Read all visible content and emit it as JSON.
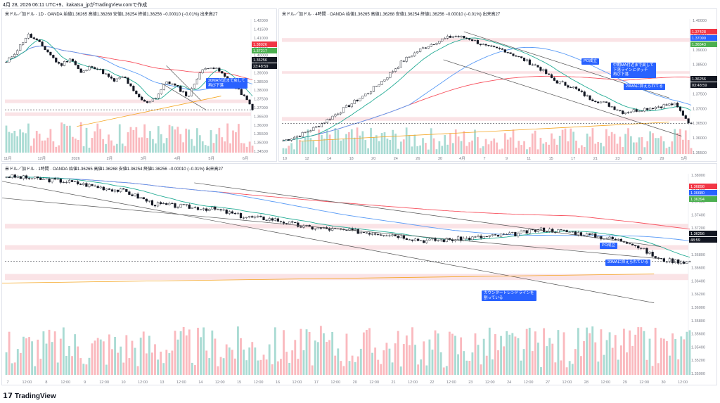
{
  "header": {
    "text": "4月 28, 2026 06:11 UTC+9、itakatsu_jpがTradingView.comで作成"
  },
  "footer": {
    "brand": "TradingView"
  },
  "colors": {
    "up": "#089981",
    "down": "#f23645",
    "accent": "#2962ff",
    "ma20": "#22ab94",
    "ma75": "#5b9cf6",
    "ma200": "#f7525f",
    "trend": "#131722",
    "zone": "#f8d7dc",
    "cyan": "#3cc8e0",
    "orange": "#f5a623"
  },
  "panes": [
    {
      "title": "米ドル／加ドル · 1D · OANDA",
      "ohlc": "始値1.36265 高値1.36268 安値1.36254 終値1.36256 −0.00010 (−0.01%) 出来高27",
      "price_labels": [
        {
          "text": "1.36256",
          "color": "#131722"
        },
        {
          "text": "23:48:59",
          "color": "#131722"
        },
        {
          "text": "1.38026",
          "color": "#f23645"
        },
        {
          "text": "1.37217",
          "color": "#4caf50"
        }
      ],
      "y_ticks": [
        "1.42000",
        "1.41500",
        "1.41000",
        "1.40500",
        "1.40000",
        "1.39500",
        "1.39000",
        "1.38500",
        "1.38000",
        "1.37500",
        "1.37000",
        "1.36500",
        "1.36000",
        "1.35500",
        "1.35000",
        "1.34500"
      ],
      "x_ticks": [
        "11月",
        "12月",
        "2026",
        "2月",
        "3月",
        "4月",
        "5月",
        "6月"
      ],
      "callouts": [
        {
          "text": "20MA付近まで戻して\n再び下落"
        }
      ]
    },
    {
      "title": "米ドル／加ドル · 4時間 · OANDA",
      "ohlc": "始値1.36265 高値1.36268 安値1.36254 終値1.36256 −0.00010 (−0.01%) 出来高27",
      "price_labels": [
        {
          "text": "1.37428",
          "color": "#f23645"
        },
        {
          "text": "1.37090",
          "color": "#2962ff"
        },
        {
          "text": "1.36543",
          "color": "#4caf50"
        },
        {
          "text": "1.36256",
          "color": "#131722"
        },
        {
          "text": "03:48:59",
          "color": "#131722"
        }
      ],
      "y_ticks": [
        "1.40000",
        "1.39500",
        "1.39000",
        "1.38500",
        "1.38000",
        "1.37500",
        "1.37000",
        "1.36500",
        "1.36000",
        "1.35500"
      ],
      "x_ticks": [
        "10",
        "12",
        "14",
        "18",
        "20",
        "24",
        "26",
        "30",
        "4月",
        "7",
        "9",
        "11",
        "15",
        "17",
        "21",
        "23",
        "25",
        "29",
        "5月"
      ],
      "callouts": [
        {
          "text": "PO成立"
        },
        {
          "text": "中期MA付近まで戻して\n下落ラインにタッチ\n再び下落"
        },
        {
          "text": "20MAに抑えられてる"
        }
      ]
    },
    {
      "title": "米ドル／加ドル · 1時間 · OANDA",
      "ohlc": "始値1.36265 高値1.36268 安値1.36254 終値1.36256 −0.00010 (−0.01%) 出来高27",
      "price_labels": [
        {
          "text": "1.36898",
          "color": "#f23645"
        },
        {
          "text": "1.36680",
          "color": "#2962ff"
        },
        {
          "text": "1.36394",
          "color": "#4caf50"
        },
        {
          "text": "1.36256",
          "color": "#131722"
        },
        {
          "text": "48:59",
          "color": "#131722"
        }
      ],
      "y_ticks": [
        "1.38000",
        "1.37800",
        "1.37600",
        "1.37400",
        "1.37200",
        "1.37000",
        "1.36800",
        "1.36600",
        "1.36400",
        "1.36200",
        "1.36000",
        "1.35800",
        "1.35600",
        "1.35400",
        "1.35200",
        "1.35000"
      ],
      "x_ticks": [
        "7",
        "12:00",
        "8",
        "12:00",
        "9",
        "12:00",
        "10",
        "12:00",
        "13",
        "12:00",
        "14",
        "12:00",
        "15",
        "12:00",
        "16",
        "12:00",
        "17",
        "12:00",
        "20",
        "12:00",
        "21",
        "12:00",
        "22",
        "12:00",
        "23",
        "12:00",
        "24",
        "12:00",
        "27",
        "12:00",
        "28",
        "12:00",
        "29",
        "12:00",
        "30",
        "12:00"
      ],
      "callouts": [
        {
          "text": "PO成立"
        },
        {
          "text": "20MAに抑えられている"
        },
        {
          "text": "カウンタートレンドラインを\n割っている"
        }
      ]
    }
  ],
  "chart_data": [
    {
      "type": "line",
      "title": "米ドル／加ドル · 1D · OANDA",
      "series": [
        {
          "values": [
            1.392,
            1.4,
            1.41,
            1.405,
            1.398,
            1.39,
            1.395,
            1.385,
            1.39,
            1.386,
            1.38,
            1.383,
            1.372,
            1.366,
            1.37,
            1.38,
            1.376,
            1.37,
            1.385,
            1.39,
            1.386,
            1.378,
            1.372,
            1.3626
          ]
        }
      ],
      "ylim": [
        1.345,
        1.42
      ]
    },
    {
      "type": "line",
      "title": "米ドル／加ドル · 4時間 · OANDA",
      "series": [
        {
          "values": [
            1.357,
            1.359,
            1.362,
            1.366,
            1.37,
            1.374,
            1.379,
            1.385,
            1.389,
            1.392,
            1.394,
            1.393,
            1.39,
            1.389,
            1.386,
            1.383,
            1.378,
            1.376,
            1.372,
            1.37,
            1.367,
            1.368,
            1.369,
            1.37,
            1.3626
          ]
        }
      ],
      "ylim": [
        1.355,
        1.4
      ]
    },
    {
      "type": "line",
      "title": "米ドル／加ドル · 1時間 · OANDA",
      "series": [
        {
          "values": [
            1.3795,
            1.379,
            1.3785,
            1.3775,
            1.3765,
            1.374,
            1.3735,
            1.373,
            1.3715,
            1.371,
            1.3695,
            1.369,
            1.3685,
            1.368,
            1.3668,
            1.367,
            1.3675,
            1.368,
            1.369,
            1.3685,
            1.3675,
            1.3665,
            1.363,
            1.3626
          ]
        }
      ],
      "ylim": [
        1.35,
        1.38
      ]
    }
  ]
}
